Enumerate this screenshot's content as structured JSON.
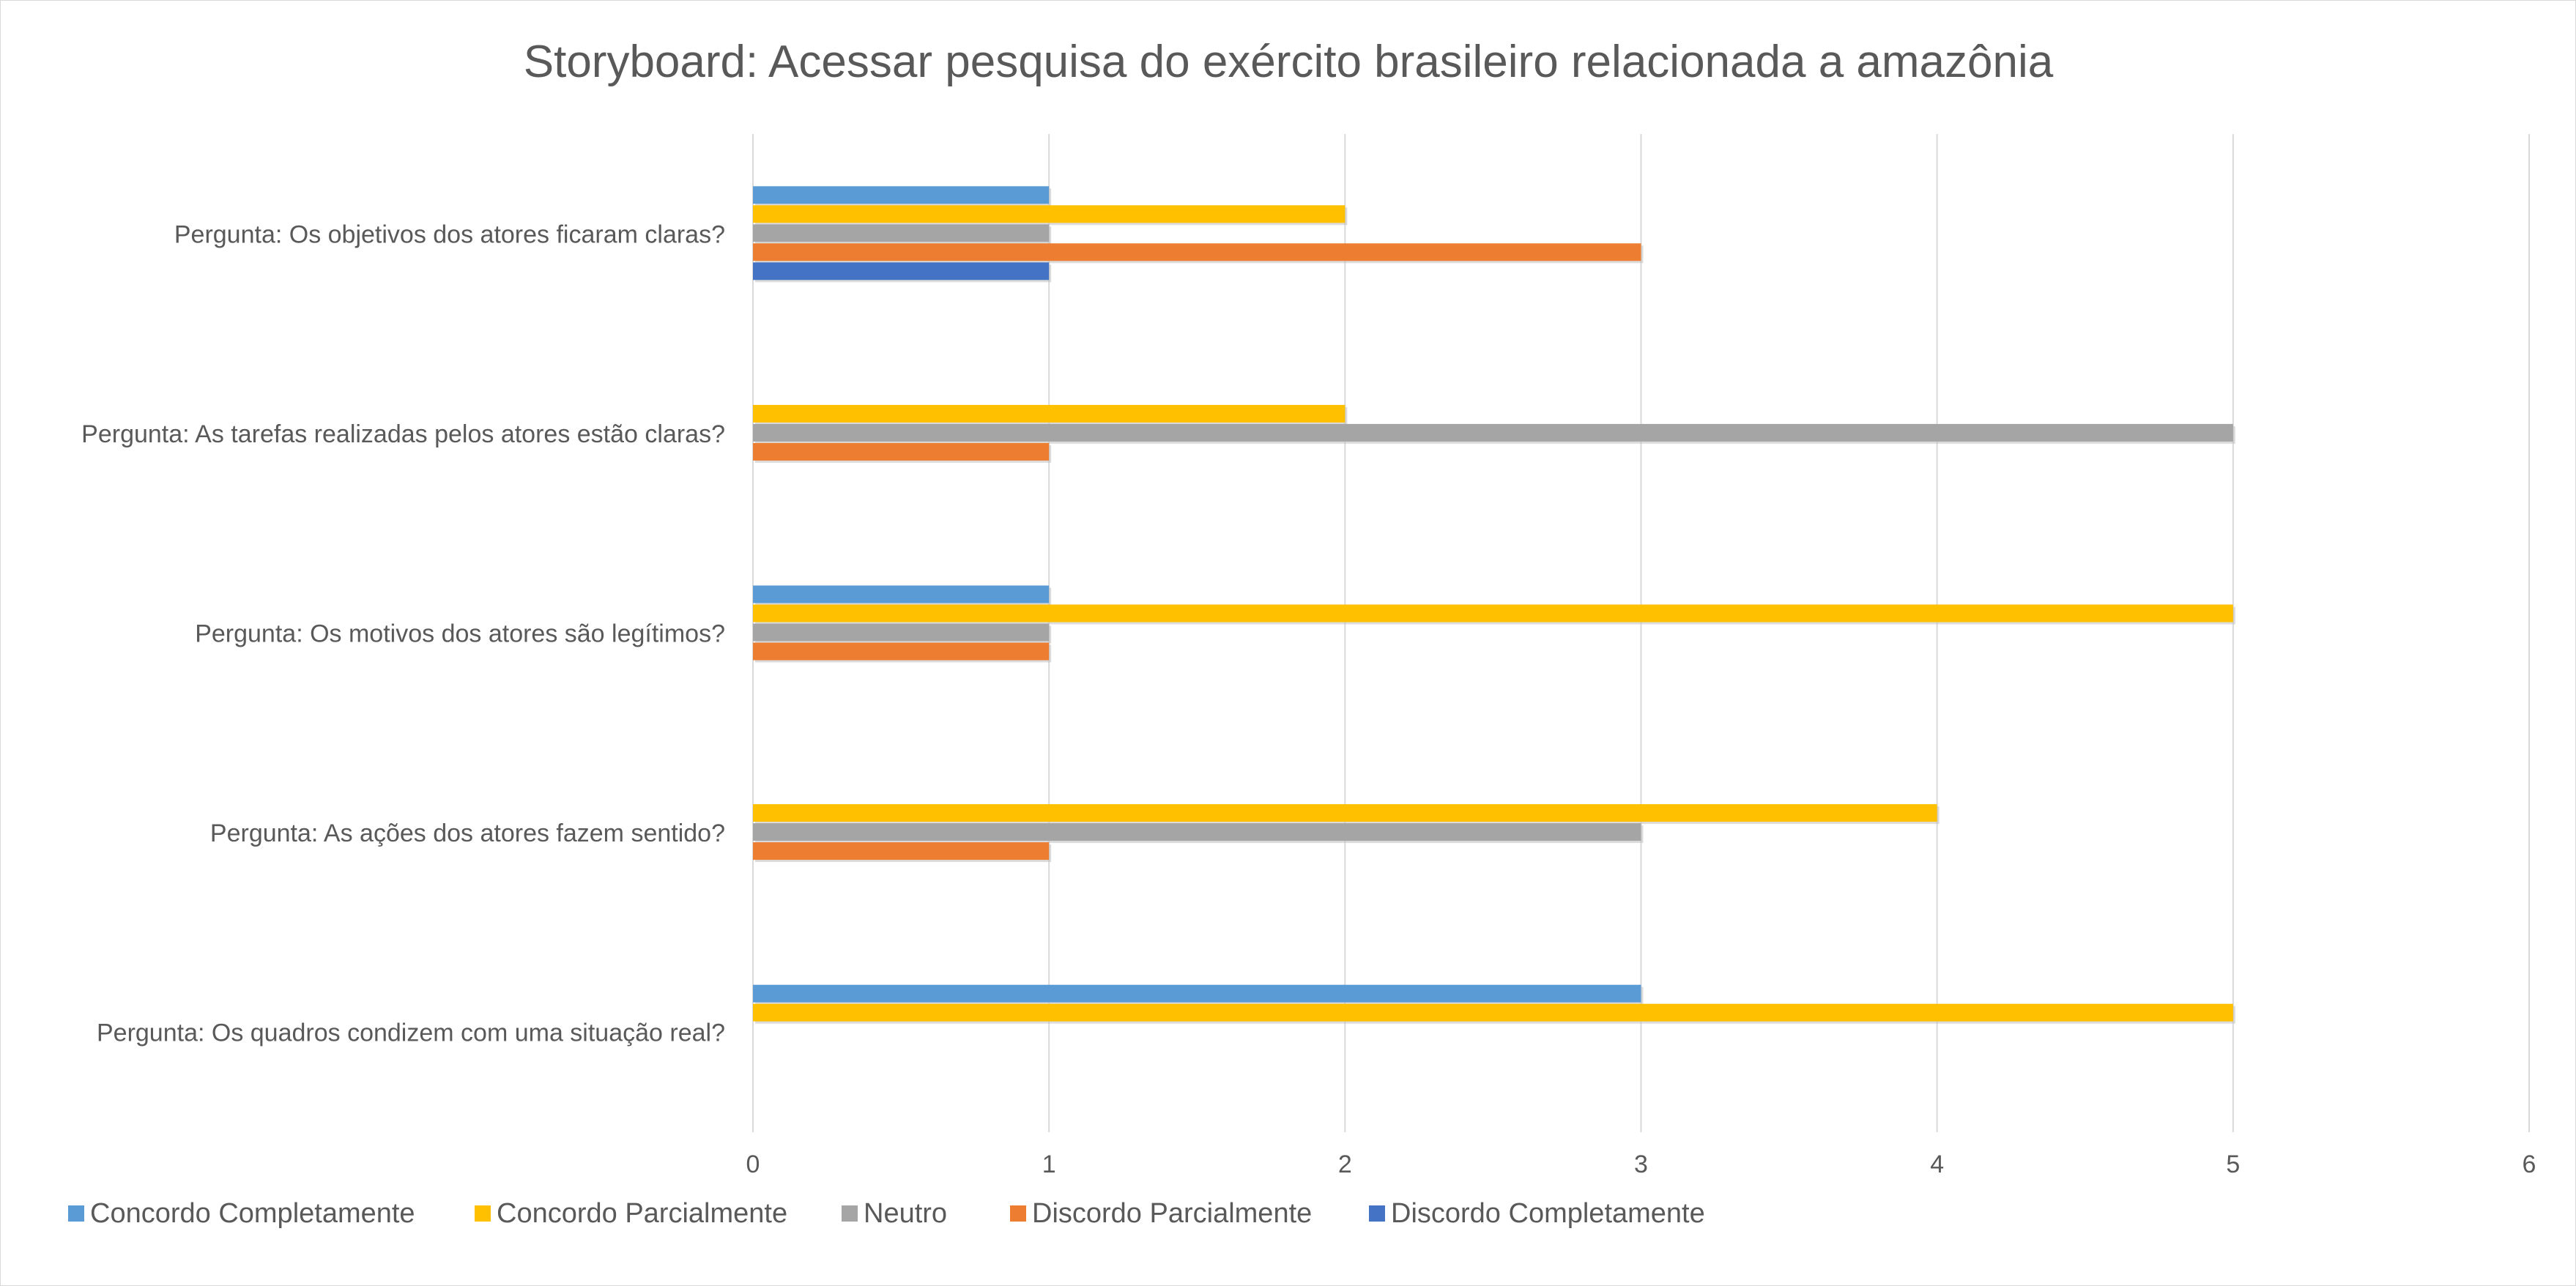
{
  "chart_data": {
    "type": "bar",
    "orientation": "horizontal",
    "title": "Storyboard: Acessar pesquisa do exército brasileiro relacionada a amazônia",
    "xlabel": "",
    "ylabel": "",
    "xlim": [
      0,
      6
    ],
    "ticks": [
      "0",
      "1",
      "2",
      "3",
      "4",
      "5",
      "6"
    ],
    "grid": true,
    "legend_position": "bottom-left",
    "categories": [
      "Pergunta: Os quadros condizem com uma situação real?",
      "Pergunta: As ações dos atores fazem sentido?",
      "Pergunta: Os motivos dos atores são legítimos?",
      "Pergunta: As tarefas realizadas pelos atores estão claras?",
      "Pergunta: Os objetivos dos atores ficaram claras?"
    ],
    "series": [
      {
        "name": "Concordo Completamente",
        "color": "#5B9BD5",
        "values": [
          3,
          0,
          1,
          0,
          1
        ]
      },
      {
        "name": "Concordo Parcialmente",
        "color": "#FFC000",
        "values": [
          5,
          4,
          5,
          2,
          2
        ]
      },
      {
        "name": "Neutro",
        "color": "#A5A5A5",
        "values": [
          0,
          3,
          1,
          5,
          1
        ]
      },
      {
        "name": "Discordo Parcialmente",
        "color": "#ED7D31",
        "values": [
          0,
          1,
          1,
          1,
          3
        ]
      },
      {
        "name": "Discordo Completamente",
        "color": "#4472C4",
        "values": [
          0,
          0,
          0,
          0,
          1
        ]
      }
    ]
  }
}
